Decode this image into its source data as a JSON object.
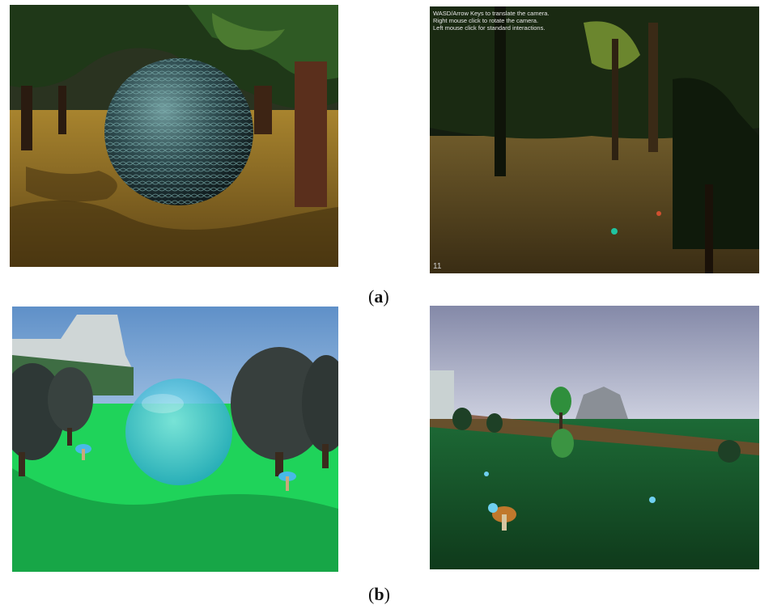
{
  "figure": {
    "captions": [
      {
        "label": "a"
      },
      {
        "label": "b"
      }
    ]
  },
  "panels": {
    "top_right_hud": {
      "lines": [
        "WASD/Arrow Keys to translate the camera.",
        "Right mouse click to rotate the camera.",
        "Left mouse click for standard interactions."
      ],
      "fps": "11"
    }
  },
  "colors": {
    "forest_ground": "#8a6a2a",
    "forest_canopy": "#1f3818",
    "meadow_grass": "#1fd35a",
    "sky": "#7fa9d6",
    "glass_sphere": "#4fc4e0",
    "textured_sphere": "#2d4a4e"
  }
}
